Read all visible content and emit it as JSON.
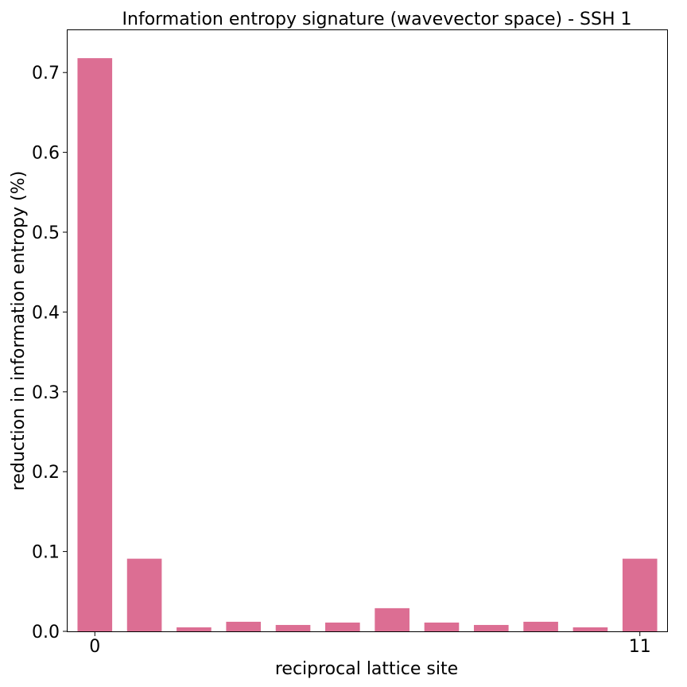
{
  "chart_data": {
    "type": "bar",
    "title": "Information entropy signature (wavevector space) - SSH 1",
    "xlabel": "reciprocal lattice site",
    "ylabel": "reduction in information entropy (%)",
    "x": [
      0,
      1,
      2,
      3,
      4,
      5,
      6,
      7,
      8,
      9,
      10,
      11
    ],
    "values": [
      0.718,
      0.091,
      0.005,
      0.012,
      0.008,
      0.011,
      0.029,
      0.011,
      0.008,
      0.012,
      0.005,
      0.091
    ],
    "xticks": [
      0,
      11
    ],
    "xtick_labels": [
      "0",
      "11"
    ],
    "yticks": [
      0.0,
      0.1,
      0.2,
      0.3,
      0.4,
      0.5,
      0.6,
      0.7
    ],
    "ytick_labels": [
      "0.0",
      "0.1",
      "0.2",
      "0.3",
      "0.4",
      "0.5",
      "0.6",
      "0.7"
    ],
    "xlim": [
      -0.55,
      11.55
    ],
    "ylim": [
      0,
      0.753
    ],
    "grid": false,
    "bar_color": "#dc6e93"
  }
}
